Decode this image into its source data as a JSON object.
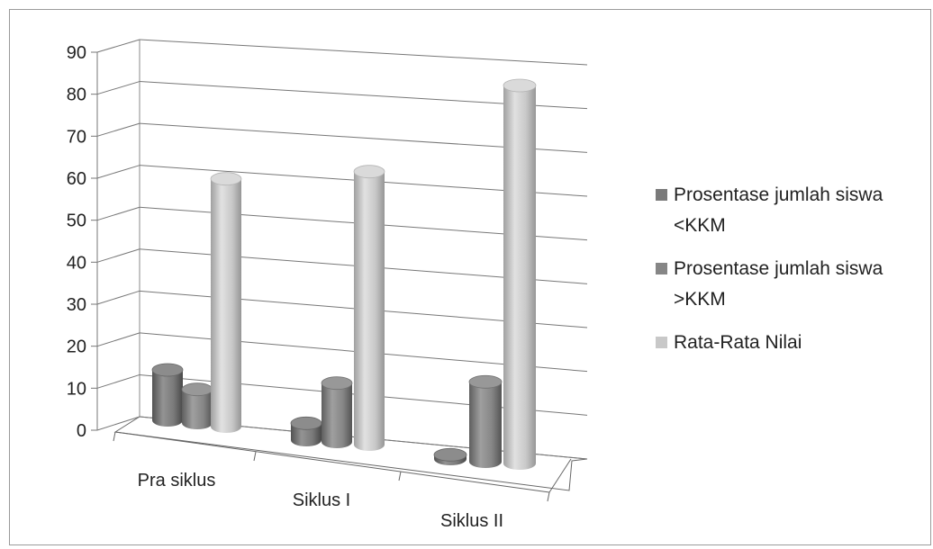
{
  "chart_data": {
    "type": "bar",
    "title": "",
    "xlabel": "",
    "ylabel": "",
    "ylim": [
      0,
      90
    ],
    "y_ticks": [
      0,
      10,
      20,
      30,
      40,
      50,
      60,
      70,
      80,
      90
    ],
    "categories": [
      "Pra siklus",
      "Siklus I",
      "Siklus II"
    ],
    "series": [
      {
        "name": "Prosentase jumlah siswa <KKM",
        "values": [
          12,
          4,
          1
        ],
        "color": "#7a7a7a"
      },
      {
        "name": "Prosentase jumlah siswa >KKM",
        "values": [
          8,
          14,
          19
        ],
        "color": "#868686"
      },
      {
        "name": "Rata-Rata Nilai",
        "values": [
          59,
          65,
          90
        ],
        "color": "#c8c8c8"
      }
    ],
    "grid": true,
    "legend_position": "right",
    "style": "3d-cylinder"
  }
}
